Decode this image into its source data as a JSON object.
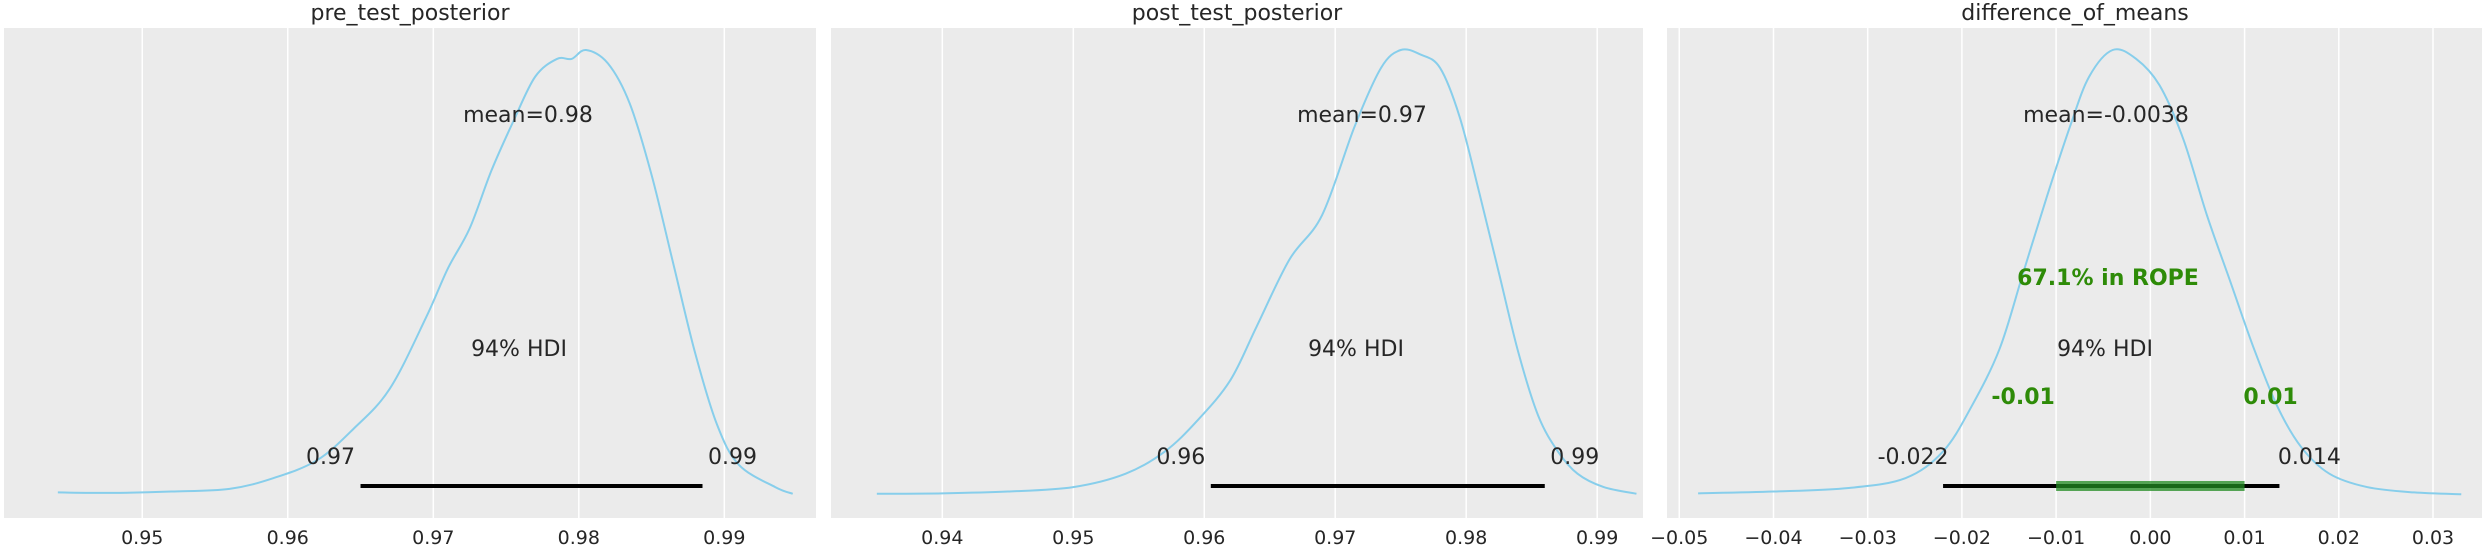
{
  "colors": {
    "panel_bg": "#ebebeb",
    "grid": "#ffffff",
    "curve": "#87ceeb",
    "hdi": "#000000",
    "rope": "#228b22",
    "rope_text": "#2e8b08"
  },
  "chart_data": [
    {
      "type": "area",
      "title": "pre_test_posterior",
      "xlim": [
        0.9405,
        0.9963
      ],
      "ticks": [
        "0.95",
        "0.96",
        "0.97",
        "0.98",
        "0.99"
      ],
      "tick_values": [
        0.95,
        0.96,
        0.97,
        0.98,
        0.99
      ],
      "grid": true,
      "mean_label": "mean=0.98",
      "hdi_label": "94% HDI",
      "hdi": [
        0.965,
        0.9885
      ],
      "hdi_low_label": "0.97",
      "hdi_high_label": "0.99",
      "density": {
        "x": [
          0.9442,
          0.948,
          0.952,
          0.956,
          0.959,
          0.962,
          0.9645,
          0.967,
          0.9695,
          0.971,
          0.9725,
          0.974,
          0.9755,
          0.977,
          0.9785,
          0.9795,
          0.9805,
          0.982,
          0.9835,
          0.985,
          0.9865,
          0.988,
          0.9895,
          0.991,
          0.9935,
          0.9947
        ],
        "y": [
          0.008,
          0.007,
          0.01,
          0.016,
          0.04,
          0.08,
          0.15,
          0.24,
          0.4,
          0.51,
          0.6,
          0.73,
          0.84,
          0.94,
          0.98,
          0.98,
          1.0,
          0.97,
          0.88,
          0.72,
          0.52,
          0.32,
          0.16,
          0.07,
          0.02,
          0.005
        ]
      }
    },
    {
      "type": "area",
      "title": "post_test_posterior",
      "xlim": [
        0.9315,
        0.9935
      ],
      "ticks": [
        "0.94",
        "0.95",
        "0.96",
        "0.97",
        "0.98",
        "0.99"
      ],
      "tick_values": [
        0.94,
        0.95,
        0.96,
        0.97,
        0.98,
        0.99
      ],
      "grid": true,
      "mean_label": "mean=0.97",
      "hdi_label": "94% HDI",
      "hdi": [
        0.9605,
        0.986
      ],
      "hdi_low_label": "0.96",
      "hdi_high_label": "0.99",
      "density": {
        "x": [
          0.935,
          0.94,
          0.945,
          0.95,
          0.954,
          0.957,
          0.9595,
          0.962,
          0.964,
          0.9665,
          0.969,
          0.9715,
          0.9735,
          0.975,
          0.9765,
          0.978,
          0.9795,
          0.981,
          0.9825,
          0.984,
          0.9855,
          0.987,
          0.9885,
          0.9905,
          0.993
        ],
        "y": [
          0.005,
          0.006,
          0.01,
          0.02,
          0.05,
          0.1,
          0.17,
          0.26,
          0.38,
          0.53,
          0.63,
          0.83,
          0.96,
          1.0,
          0.99,
          0.96,
          0.85,
          0.68,
          0.5,
          0.32,
          0.18,
          0.1,
          0.05,
          0.02,
          0.005
        ]
      }
    },
    {
      "type": "area",
      "title": "difference_of_means",
      "xlim": [
        -0.0513,
        0.0352
      ],
      "ticks": [
        "−0.05",
        "−0.04",
        "−0.03",
        "−0.02",
        "−0.01",
        "0.00",
        "0.01",
        "0.02",
        "0.03"
      ],
      "tick_values": [
        -0.05,
        -0.04,
        -0.03,
        -0.02,
        -0.01,
        0.0,
        0.01,
        0.02,
        0.03
      ],
      "grid": true,
      "mean_label": "mean=-0.0038",
      "hdi_label": "94% HDI",
      "hdi": [
        -0.022,
        0.0137
      ],
      "hdi_low_label": "-0.022",
      "hdi_high_label": "0.014",
      "rope": [
        -0.01,
        0.01
      ],
      "rope_label": "67.1% in ROPE",
      "rope_low_label": "-0.01",
      "rope_high_label": "0.01",
      "density": {
        "x": [
          -0.048,
          -0.04,
          -0.032,
          -0.026,
          -0.022,
          -0.019,
          -0.016,
          -0.0135,
          -0.011,
          -0.0085,
          -0.0065,
          -0.004,
          -0.0015,
          0.001,
          0.0035,
          0.006,
          0.0085,
          0.011,
          0.0135,
          0.016,
          0.019,
          0.023,
          0.028,
          0.033
        ],
        "y": [
          0.006,
          0.01,
          0.018,
          0.04,
          0.1,
          0.2,
          0.33,
          0.5,
          0.67,
          0.83,
          0.94,
          1.0,
          0.98,
          0.92,
          0.8,
          0.63,
          0.48,
          0.33,
          0.2,
          0.11,
          0.05,
          0.02,
          0.008,
          0.004
        ]
      }
    }
  ]
}
